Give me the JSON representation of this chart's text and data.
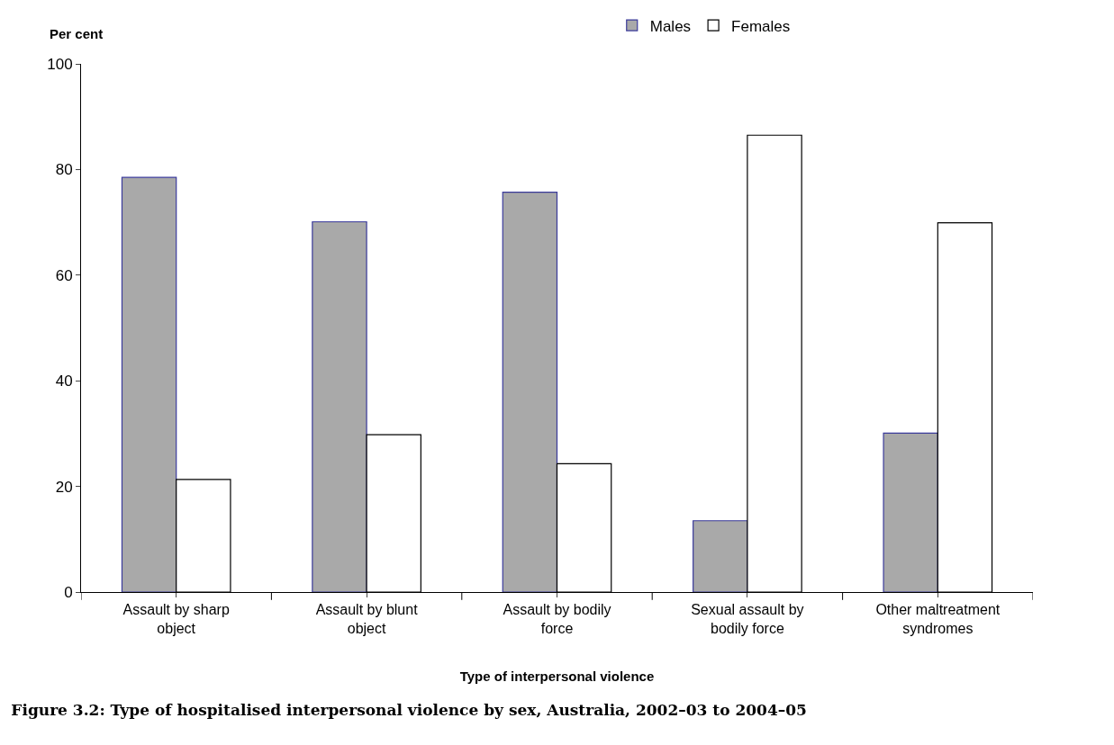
{
  "chart_data": {
    "type": "bar",
    "title": "Figure 3.2: Type of hospitalised interpersonal violence by sex, Australia, 2002–03 to 2004–05",
    "xlabel": "Type of interpersonal violence",
    "ylabel": "Per cent",
    "categories": [
      "Assault by sharp object",
      "Assault by blunt object",
      "Assault by bodily force",
      "Sexual assault by bodily force",
      "Other maltreatment syndromes"
    ],
    "series": [
      {
        "name": "Males",
        "color": "#a9a9a9",
        "values": [
          78.5,
          70.1,
          75.7,
          13.5,
          30.1
        ]
      },
      {
        "name": "Females",
        "color": "#ffffff",
        "values": [
          21.3,
          29.8,
          24.3,
          86.5,
          69.9
        ]
      }
    ],
    "ylim": [
      0,
      100
    ],
    "yticks": [
      0,
      20,
      40,
      60,
      80,
      100
    ],
    "legend": "top right"
  }
}
